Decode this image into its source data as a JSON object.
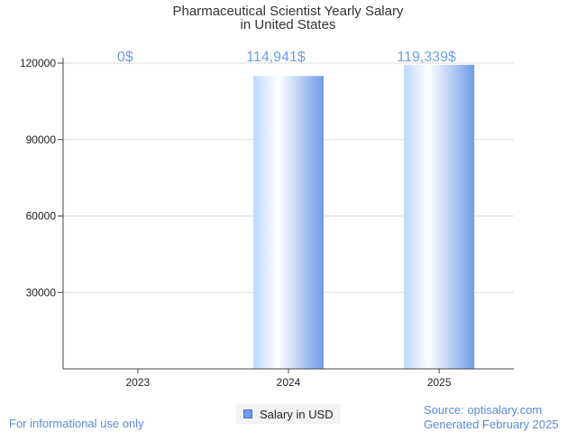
{
  "title_line1": "Pharmaceutical Scientist Yearly Salary",
  "title_line2": "in United States",
  "legend_label": "Salary in USD",
  "footer": {
    "left": "For informational use only",
    "source": "Source: optisalary.com",
    "generated": "Generated February 2025"
  },
  "colors": {
    "bar_light": "#cfe6ff",
    "bar_dark": "#6f9ce8",
    "label": "#6f9ce8"
  },
  "chart_data": {
    "type": "bar",
    "title": "Pharmaceutical Scientist Yearly Salary in United States",
    "categories": [
      "2023",
      "2024",
      "2025"
    ],
    "series": [
      {
        "name": "Salary in USD",
        "values": [
          0,
          114941,
          119339
        ]
      }
    ],
    "data_labels": [
      "0$",
      "114,941$",
      "119,339$"
    ],
    "y_ticks": [
      30000,
      60000,
      90000,
      120000
    ],
    "ylim": [
      0,
      120000
    ],
    "grid": true,
    "legend": "bottom-center"
  }
}
